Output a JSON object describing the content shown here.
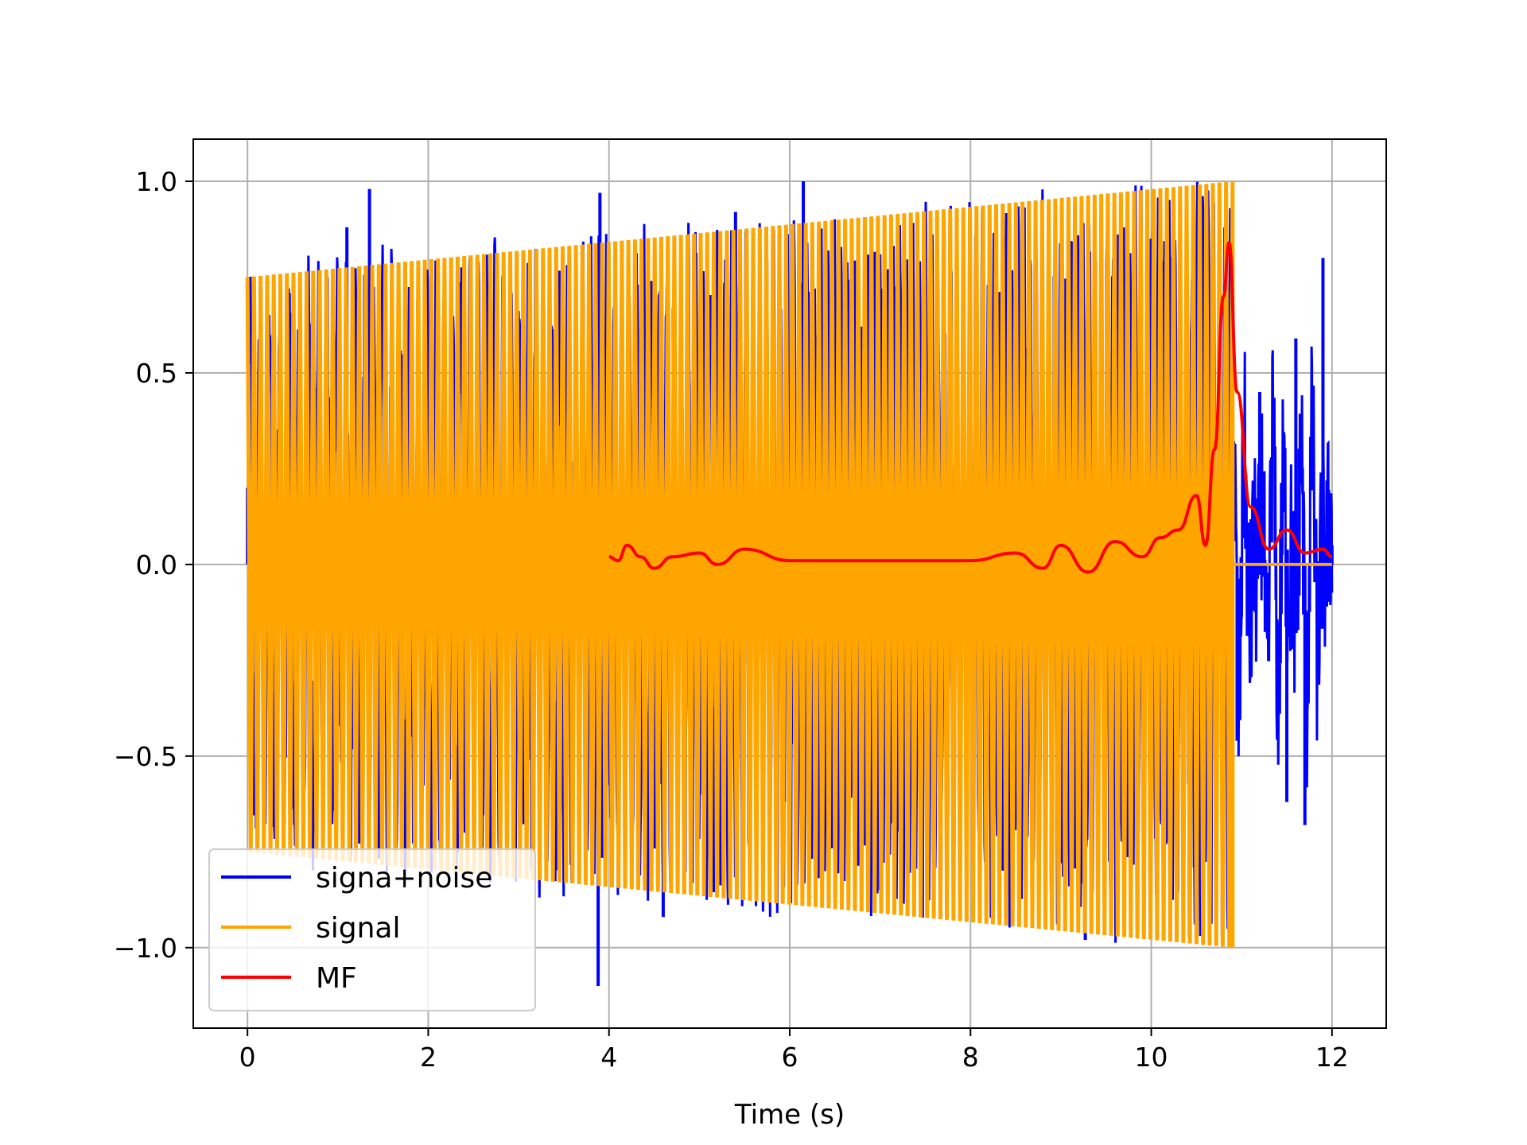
{
  "chart_data": {
    "type": "line",
    "title": "",
    "xlabel": "Time (s)",
    "ylabel": "",
    "xlim": [
      -0.6,
      12.6
    ],
    "ylim": [
      -1.21,
      1.11
    ],
    "grid": true,
    "legend_placement": "lower-left",
    "xticks": [
      0,
      2,
      4,
      6,
      8,
      10,
      12
    ],
    "xtick_labels": [
      "0",
      "2",
      "4",
      "6",
      "8",
      "10",
      "12"
    ],
    "yticks": [
      -1.0,
      -0.5,
      0.0,
      0.5,
      1.0
    ],
    "ytick_labels": [
      "−1.0",
      "−0.5",
      "0.0",
      "0.5",
      "1.0"
    ],
    "series": [
      {
        "name": "signa+noise",
        "color": "#0000ff",
        "description_points": {
          "x": [
            0.0,
            0.5,
            1.1,
            1.35,
            2.0,
            2.75,
            3.9,
            3.88,
            4.6,
            5.4,
            6.15,
            7.0,
            8.0,
            9.0,
            9.27,
            10.0,
            10.9,
            10.95,
            11.2,
            11.5,
            11.6,
            11.7,
            11.9,
            12.0
          ],
          "y": [
            0.2,
            0.45,
            0.88,
            0.98,
            -0.75,
            0.8,
            0.97,
            -1.1,
            -0.92,
            0.92,
            1.0,
            -0.85,
            0.75,
            -0.78,
            -0.98,
            0.85,
            1.0,
            -0.46,
            0.45,
            -0.62,
            0.59,
            -0.68,
            0.8,
            0.05
          ]
        }
      },
      {
        "name": "signal",
        "color": "#ffa500",
        "envelope_start": [
          0.0,
          0.75
        ],
        "envelope_end": [
          10.9,
          1.0
        ],
        "end_time": 10.9
      },
      {
        "name": "MF",
        "color": "#ff0000",
        "x": [
          4.0,
          4.1,
          4.2,
          4.35,
          4.5,
          4.7,
          5.0,
          5.2,
          5.5,
          6.0,
          7.0,
          8.0,
          8.5,
          8.8,
          9.0,
          9.3,
          9.6,
          9.9,
          10.1,
          10.3,
          10.5,
          10.6,
          10.7,
          10.8,
          10.86,
          10.95,
          11.1,
          11.3,
          11.5,
          11.7,
          11.9,
          12.0
        ],
        "y": [
          0.02,
          0.01,
          0.05,
          0.02,
          -0.01,
          0.02,
          0.03,
          0.0,
          0.04,
          0.01,
          0.01,
          0.01,
          0.03,
          -0.01,
          0.05,
          -0.02,
          0.06,
          0.02,
          0.07,
          0.09,
          0.18,
          0.05,
          0.3,
          0.7,
          0.84,
          0.45,
          0.15,
          0.04,
          0.09,
          0.03,
          0.04,
          0.02
        ]
      }
    ]
  }
}
